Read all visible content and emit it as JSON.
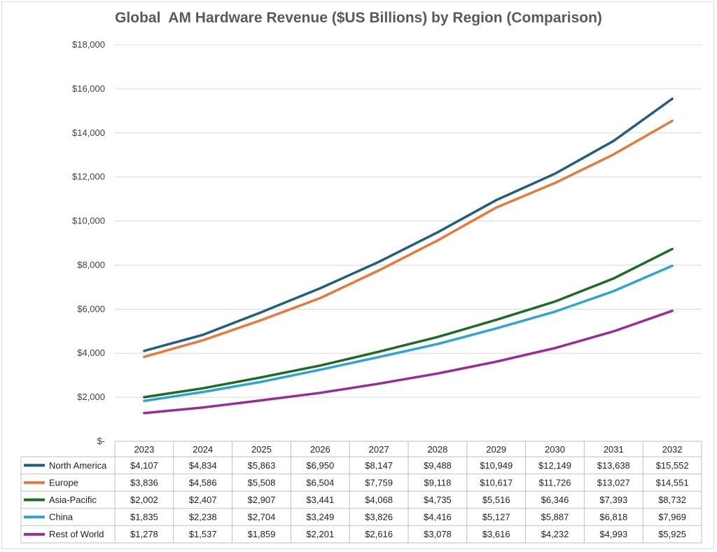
{
  "chart_data": {
    "type": "line",
    "title": "Global  AM Hardware Revenue ($US Billions) by Region (Comparison)",
    "xlabel": "",
    "ylabel": "",
    "ylim": [
      0,
      18000
    ],
    "y_tick_values": [
      0,
      2000,
      4000,
      6000,
      8000,
      10000,
      12000,
      14000,
      16000,
      18000
    ],
    "y_tick_labels": [
      "$-",
      "$2,000",
      "$4,000",
      "$6,000",
      "$8,000",
      "$10,000",
      "$12,000",
      "$14,000",
      "$16,000",
      "$18,000"
    ],
    "grid": true,
    "legend": "data-table",
    "categories": [
      "2023",
      "2024",
      "2025",
      "2026",
      "2027",
      "2028",
      "2029",
      "2030",
      "2031",
      "2032"
    ],
    "series": [
      {
        "name": "North America",
        "color": "#1f5f7f",
        "values": [
          4107,
          4834,
          5863,
          6950,
          8147,
          9488,
          10949,
          12149,
          13638,
          15552
        ],
        "labels": [
          "$4,107",
          "$4,834",
          "$5,863",
          "$6,950",
          "$8,147",
          "$9,488",
          "$10,949",
          "$12,149",
          "$13,638",
          "$15,552"
        ]
      },
      {
        "name": "Europe",
        "color": "#e8793a",
        "values": [
          3836,
          4586,
          5508,
          6504,
          7759,
          9118,
          10617,
          11726,
          13027,
          14551
        ],
        "labels": [
          "$3,836",
          "$4,586",
          "$5,508",
          "$6,504",
          "$7,759",
          "$9,118",
          "$10,617",
          "$11,726",
          "$13,027",
          "$14,551"
        ]
      },
      {
        "name": "Asia-Pacific",
        "color": "#1f6b25",
        "values": [
          2002,
          2407,
          2907,
          3441,
          4068,
          4735,
          5516,
          6346,
          7393,
          8732
        ],
        "labels": [
          "$2,002",
          "$2,407",
          "$2,907",
          "$3,441",
          "$4,068",
          "$4,735",
          "$5,516",
          "$6,346",
          "$7,393",
          "$8,732"
        ]
      },
      {
        "name": "China",
        "color": "#2ea3d6",
        "values": [
          1835,
          2238,
          2704,
          3249,
          3826,
          4416,
          5127,
          5887,
          6818,
          7969
        ],
        "labels": [
          "$1,835",
          "$2,238",
          "$2,704",
          "$3,249",
          "$3,826",
          "$4,416",
          "$5,127",
          "$5,887",
          "$6,818",
          "$7,969"
        ]
      },
      {
        "name": "Rest of World",
        "color": "#9a2a96",
        "values": [
          1278,
          1537,
          1859,
          2201,
          2616,
          3078,
          3616,
          4232,
          4993,
          5925
        ],
        "labels": [
          "$1,278",
          "$1,537",
          "$1,859",
          "$2,201",
          "$2,616",
          "$3,078",
          "$3,616",
          "$4,232",
          "$4,993",
          "$5,925"
        ]
      }
    ]
  }
}
